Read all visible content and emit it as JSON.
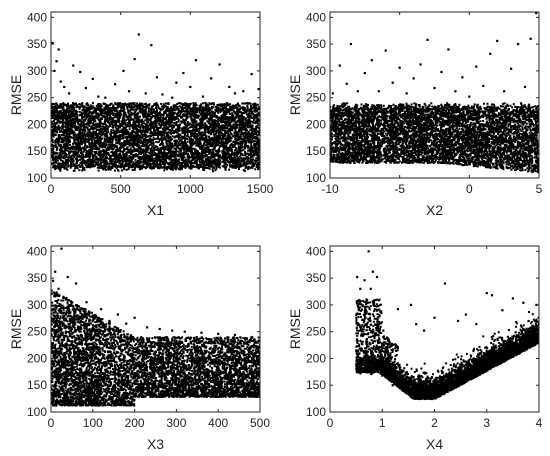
{
  "chart_data": [
    {
      "type": "scatter",
      "xlabel": "X1",
      "ylabel": "RMSE",
      "xlim": [
        0,
        1500
      ],
      "ylim": [
        100,
        410
      ],
      "xticks": [
        "0",
        "500",
        "1000",
        "1500"
      ],
      "yticks": [
        "100",
        "150",
        "200",
        "250",
        "300",
        "350",
        "400"
      ],
      "marker_color": "#000000",
      "grid": false,
      "series": [
        {
          "points": [
            [
              12,
              352
            ],
            [
              25,
              300
            ],
            [
              40,
              318
            ],
            [
              55,
              340
            ],
            [
              70,
              280
            ],
            [
              95,
              270
            ],
            [
              130,
              258
            ],
            [
              160,
              310
            ],
            [
              210,
              298
            ],
            [
              250,
              268
            ],
            [
              300,
              285
            ],
            [
              340,
              252
            ],
            [
              390,
              250
            ],
            [
              460,
              275
            ],
            [
              520,
              300
            ],
            [
              560,
              262
            ],
            [
              600,
              322
            ],
            [
              630,
              368
            ],
            [
              680,
              258
            ],
            [
              720,
              348
            ],
            [
              760,
              288
            ],
            [
              800,
              256
            ],
            [
              870,
              250
            ],
            [
              900,
              278
            ],
            [
              950,
              296
            ],
            [
              1000,
              270
            ],
            [
              1040,
              320
            ],
            [
              1090,
              252
            ],
            [
              1150,
              286
            ],
            [
              1210,
              312
            ],
            [
              1280,
              270
            ],
            [
              1320,
              258
            ],
            [
              1380,
              262
            ],
            [
              1440,
              294
            ],
            [
              1490,
              266
            ],
            [
              100,
              225
            ],
            [
              250,
              200
            ],
            [
              400,
              180
            ],
            [
              550,
              165
            ],
            [
              700,
              155
            ],
            [
              850,
              160
            ],
            [
              1000,
              175
            ],
            [
              1150,
              190
            ],
            [
              1300,
              210
            ],
            [
              1450,
              220
            ],
            [
              300,
              140
            ],
            [
              800,
              130
            ],
            [
              1200,
              145
            ]
          ]
        }
      ]
    },
    {
      "type": "scatter",
      "xlabel": "X2",
      "ylabel": "RMSE",
      "xlim": [
        -10,
        5
      ],
      "ylim": [
        100,
        410
      ],
      "xticks": [
        "-10",
        "-5",
        "0",
        "5"
      ],
      "yticks": [
        "100",
        "150",
        "200",
        "250",
        "300",
        "350",
        "400"
      ],
      "marker_color": "#000000",
      "grid": false,
      "series": [
        {
          "points": [
            [
              -9.8,
              258
            ],
            [
              -9.3,
              310
            ],
            [
              -8.8,
              276
            ],
            [
              -8.5,
              350
            ],
            [
              -8.0,
              262
            ],
            [
              -7.5,
              296
            ],
            [
              -7.0,
              320
            ],
            [
              -6.5,
              262
            ],
            [
              -6.0,
              338
            ],
            [
              -5.5,
              278
            ],
            [
              -5.0,
              306
            ],
            [
              -4.5,
              258
            ],
            [
              -4.0,
              286
            ],
            [
              -3.5,
              312
            ],
            [
              -3.0,
              358
            ],
            [
              -2.5,
              268
            ],
            [
              -2.0,
              298
            ],
            [
              -1.5,
              340
            ],
            [
              -1.0,
              262
            ],
            [
              -0.5,
              288
            ],
            [
              0.0,
              252
            ],
            [
              0.5,
              308
            ],
            [
              1.0,
              272
            ],
            [
              1.5,
              332
            ],
            [
              2.0,
              356
            ],
            [
              2.5,
              262
            ],
            [
              3.0,
              304
            ],
            [
              3.5,
              350
            ],
            [
              4.0,
              270
            ],
            [
              4.4,
              360
            ],
            [
              4.8,
              408
            ],
            [
              -8.0,
              205
            ],
            [
              -5.0,
              190
            ],
            [
              -2.0,
              175
            ],
            [
              0.0,
              165
            ],
            [
              2.0,
              150
            ],
            [
              4.0,
              140
            ],
            [
              -7.0,
              150
            ],
            [
              -3.0,
              160
            ],
            [
              1.0,
              130
            ]
          ]
        }
      ]
    },
    {
      "type": "scatter",
      "xlabel": "X3",
      "ylabel": "RMSE",
      "xlim": [
        0,
        500
      ],
      "ylim": [
        100,
        410
      ],
      "xticks": [
        "0",
        "100",
        "200",
        "300",
        "400",
        "500"
      ],
      "yticks": [
        "100",
        "150",
        "200",
        "250",
        "300",
        "350",
        "400"
      ],
      "marker_color": "#000000",
      "grid": false,
      "series": [
        {
          "points": [
            [
              5,
              345
            ],
            [
              10,
              362
            ],
            [
              18,
              330
            ],
            [
              25,
              405
            ],
            [
              30,
              315
            ],
            [
              40,
              352
            ],
            [
              52,
              298
            ],
            [
              60,
              340
            ],
            [
              70,
              288
            ],
            [
              85,
              305
            ],
            [
              100,
              280
            ],
            [
              120,
              292
            ],
            [
              140,
              270
            ],
            [
              160,
              282
            ],
            [
              180,
              265
            ],
            [
              200,
              276
            ],
            [
              230,
              258
            ],
            [
              260,
              255
            ],
            [
              290,
              252
            ],
            [
              320,
              250
            ],
            [
              360,
              248
            ],
            [
              400,
              246
            ],
            [
              440,
              244
            ],
            [
              480,
              240
            ],
            [
              20,
              230
            ],
            [
              80,
              210
            ],
            [
              150,
              195
            ],
            [
              250,
              180
            ],
            [
              350,
              170
            ],
            [
              450,
              175
            ],
            [
              60,
              150
            ],
            [
              200,
              140
            ],
            [
              400,
              145
            ]
          ]
        }
      ]
    },
    {
      "type": "scatter",
      "xlabel": "X4",
      "ylabel": "RMSE",
      "xlim": [
        0,
        4
      ],
      "ylim": [
        100,
        410
      ],
      "xticks": [
        "0",
        "1",
        "2",
        "3",
        "4"
      ],
      "yticks": [
        "100",
        "150",
        "200",
        "250",
        "300",
        "350",
        "400"
      ],
      "marker_color": "#000000",
      "grid": false,
      "series": [
        {
          "points": [
            [
              0.52,
              352
            ],
            [
              0.55,
              290
            ],
            [
              0.58,
              330
            ],
            [
              0.62,
              272
            ],
            [
              0.66,
              346
            ],
            [
              0.7,
              310
            ],
            [
              0.74,
              400
            ],
            [
              0.78,
              330
            ],
            [
              0.82,
              362
            ],
            [
              0.86,
              298
            ],
            [
              0.9,
              352
            ],
            [
              0.94,
              268
            ],
            [
              0.98,
              288
            ],
            [
              1.02,
              252
            ],
            [
              1.1,
              238
            ],
            [
              1.3,
              292
            ],
            [
              1.55,
              300
            ],
            [
              1.65,
              264
            ],
            [
              1.8,
              252
            ],
            [
              2.0,
              276
            ],
            [
              2.2,
              340
            ],
            [
              2.45,
              270
            ],
            [
              2.6,
              282
            ],
            [
              2.8,
              264
            ],
            [
              3.0,
              322
            ],
            [
              3.1,
              318
            ],
            [
              3.3,
              290
            ],
            [
              3.5,
              312
            ],
            [
              3.7,
              304
            ],
            [
              3.8,
              270
            ],
            [
              3.95,
              300
            ],
            [
              0.6,
              185
            ],
            [
              0.8,
              180
            ],
            [
              1.0,
              168
            ],
            [
              1.2,
              150
            ],
            [
              1.5,
              135
            ],
            [
              1.8,
              132
            ],
            [
              2.1,
              150
            ],
            [
              2.5,
              170
            ],
            [
              3.0,
              190
            ],
            [
              3.5,
              212
            ],
            [
              3.9,
              232
            ]
          ]
        }
      ]
    }
  ]
}
